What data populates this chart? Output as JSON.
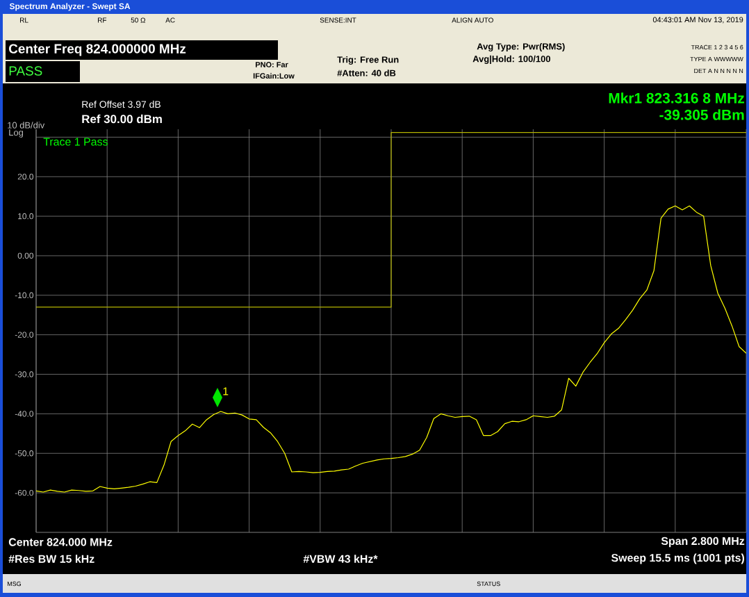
{
  "chart_data": {
    "type": "line",
    "title": "Spectrum Analyzer - Swept SA",
    "categories": [
      null,
      null,
      null,
      null,
      null,
      null,
      null,
      null,
      null,
      null,
      null,
      null,
      null,
      null,
      null,
      null,
      null,
      null,
      null,
      null,
      null,
      null,
      null,
      null,
      null,
      null,
      null,
      null,
      null,
      null,
      null,
      null,
      null,
      null,
      null,
      null,
      null,
      null,
      null,
      null,
      null,
      null,
      null,
      null,
      null,
      null,
      null,
      null,
      null,
      null,
      null,
      null,
      null,
      null,
      null,
      null,
      null,
      null,
      null,
      null,
      null,
      null,
      null,
      null,
      null,
      null,
      null,
      null,
      null,
      null,
      null,
      null,
      null,
      null,
      null,
      null,
      null,
      null,
      null,
      null,
      null,
      null,
      null,
      null,
      null,
      null,
      null,
      null,
      null,
      null,
      null,
      null,
      null,
      null,
      null,
      null,
      null,
      null,
      null,
      null,
      null
    ],
    "series": [
      {
        "color": "#ffff00",
        "values": [
          -59.5,
          -59.8,
          -59.3,
          -59.6,
          -59.8,
          -59.3,
          -59.4,
          -59.6,
          -59.5,
          -58.4,
          -58.8,
          -59.0,
          -58.8,
          -58.6,
          -58.3,
          -57.8,
          -57.2,
          -57.4,
          -53.0,
          -47.0,
          -45.5,
          -44.3,
          -42.6,
          -43.5,
          -41.5,
          -40.2,
          -39.4,
          -40.0,
          -39.8,
          -40.3,
          -41.3,
          -41.5,
          -43.4,
          -44.8,
          -47.0,
          -50.0,
          -54.7,
          -54.6,
          -54.7,
          -54.9,
          -54.8,
          -54.6,
          -54.5,
          -54.2,
          -54.0,
          -53.2,
          -52.5,
          -52.1,
          -51.7,
          -51.4,
          -51.3,
          -51.1,
          -50.8,
          -50.2,
          -49.2,
          -46.0,
          -41.2,
          -40.0,
          -40.5,
          -40.9,
          -40.7,
          -40.6,
          -41.5,
          -45.5,
          -45.5,
          -44.5,
          -42.5,
          -41.9,
          -42.0,
          -41.5,
          -40.5,
          -40.7,
          -40.9,
          -40.6,
          -39.0,
          -31.0,
          -33.0,
          -29.5,
          -27.0,
          -24.8,
          -22.0,
          -19.8,
          -18.4,
          -16.2,
          -13.8,
          -10.9,
          -8.7,
          -3.8,
          9.5,
          11.8,
          12.6,
          11.6,
          12.6,
          11.0,
          10.0,
          -2.5,
          -9.5,
          -13.3,
          -17.8,
          -23.0,
          -24.7
        ]
      },
      {
        "color": "#b4b400",
        "type": "step",
        "values": [
          -13,
          -13,
          -13,
          -13,
          -13,
          -13,
          -13,
          -13,
          -13,
          -13,
          -13,
          -13,
          -13,
          -13,
          -13,
          -13,
          -13,
          -13,
          -13,
          -13,
          -13,
          -13,
          -13,
          -13,
          -13,
          -13,
          -13,
          -13,
          -13,
          -13,
          -13,
          -13,
          -13,
          -13,
          -13,
          -13,
          -13,
          -13,
          -13,
          -13,
          -13,
          -13,
          -13,
          -13,
          -13,
          -13,
          -13,
          -13,
          -13,
          -13,
          31.2,
          31.2,
          31.2,
          31.2,
          31.2,
          31.2,
          31.2,
          31.2,
          31.2,
          31.2,
          31.2,
          31.2,
          31.2,
          31.2,
          31.2,
          31.2,
          31.2,
          31.2,
          31.2,
          31.2,
          31.2,
          31.2,
          31.2,
          31.2,
          31.2,
          31.2,
          31.2,
          31.2,
          31.2,
          31.2,
          31.2,
          31.2,
          31.2,
          31.2,
          31.2,
          31.2,
          31.2,
          31.2,
          31.2,
          31.2,
          31.2,
          31.2,
          31.2,
          31.2,
          31.2,
          31.2,
          31.2,
          31.2,
          31.2,
          31.2,
          31.2
        ]
      }
    ],
    "ylim": [
      -70,
      32
    ],
    "yticks": [
      {
        "value": -60,
        "label": "-60.0"
      },
      {
        "value": -50,
        "label": "-50.0"
      },
      {
        "value": -40,
        "label": "-40.0"
      },
      {
        "value": -30,
        "label": "-30.0"
      },
      {
        "value": -20,
        "label": "-20.0"
      },
      {
        "value": -10,
        "label": "-10.0"
      },
      {
        "value": 0,
        "label": "0.00"
      },
      {
        "value": 10,
        "label": "10.0"
      },
      {
        "value": 20,
        "label": "20.0"
      },
      {
        "value": 30,
        "label": null
      }
    ],
    "tick_labels": "y",
    "grid": true,
    "marker": "none",
    "line_style": "solid",
    "annotations": [
      "RL",
      "RF",
      "50 Ω",
      "AC",
      "SENSE:INT",
      "ALIGN AUTO",
      "04:43:01 AM Nov 13, 2019",
      "Center Freq 824.000000 MHz",
      "PASS",
      "PNO: Far",
      "IFGain:Low",
      "Trig: Free Run",
      "#Atten: 40 dB",
      "Avg Type: Pwr(RMS)",
      "Avg|Hold: 100/100",
      "TRACE 1 2 3 4 5 6",
      "TYPE A WWWWW",
      "DET A N N N N N",
      "Ref Offset 3.97 dB",
      "Ref 30.00 dBm",
      "10 dB/div",
      "Log",
      "Mkr1 823.316 8 MHz",
      "-39.305 dBm",
      "Trace 1 Pass",
      "Center 824.000 MHz",
      "Span 2.800 MHz",
      "#Res BW 15 kHz",
      "#VBW 43 kHz*",
      "Sweep  15.5 ms (1001 pts)",
      "MSG",
      "STATUS",
      "1"
    ]
  }
}
